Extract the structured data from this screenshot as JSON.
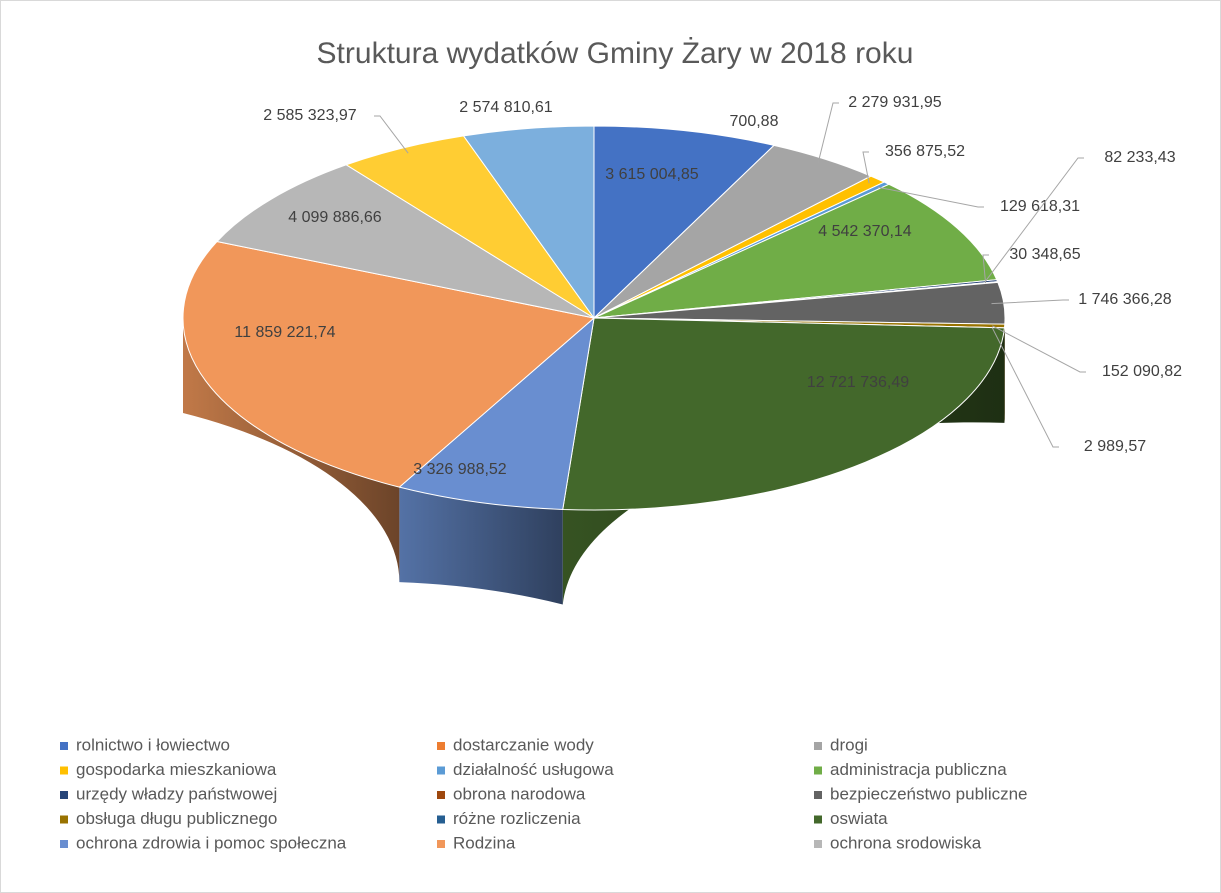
{
  "chart_data": {
    "type": "pie3d",
    "title": "Struktura wydatków Gminy Żary w 2018 roku",
    "categories": [
      "rolnictwo i łowiectwo",
      "dostarczanie wody",
      "drogi",
      "gospodarka mieszkaniowa",
      "działalność usługowa",
      "administracja publiczna",
      "urzędy władzy państwowej",
      "obrona narodowa",
      "bezpieczeństwo publiczne",
      "obsługa długu publicznego",
      "różne rozliczenia",
      "oswiata",
      "ochrona zdrowia i pomoc społeczna",
      "Rodzina",
      "ochrona srodowiska",
      null,
      null
    ],
    "values": [
      3615004.85,
      700.88,
      2279931.95,
      356875.52,
      129618.31,
      4542370.14,
      82233.43,
      30348.65,
      1746366.28,
      152090.82,
      2989.57,
      12721736.49,
      3326988.52,
      11859221.74,
      4099886.66,
      2585323.97,
      2574810.61
    ],
    "value_labels": [
      "3 615 004,85",
      "700,88",
      "2 279 931,95",
      "356 875,52",
      "129 618,31",
      "4 542 370,14",
      "82 233,43",
      "30 348,65",
      "1 746 366,28",
      "152 090,82",
      "2 989,57",
      "12 721 736,49",
      "3 326 988,52",
      "11 859 221,74",
      "4 099 886,66",
      "2 585 323,97",
      "2 574 810,61"
    ],
    "colors": [
      "#4472c4",
      "#ed7d31",
      "#a5a5a5",
      "#ffc000",
      "#5b9bd5",
      "#70ad47",
      "#264478",
      "#9e480e",
      "#636363",
      "#997300",
      "#255e91",
      "#43682b",
      "#698ed0",
      "#f1975a",
      "#b7b7b7",
      "#ffcd33",
      "#7cafdd"
    ],
    "legend": "bottom"
  }
}
